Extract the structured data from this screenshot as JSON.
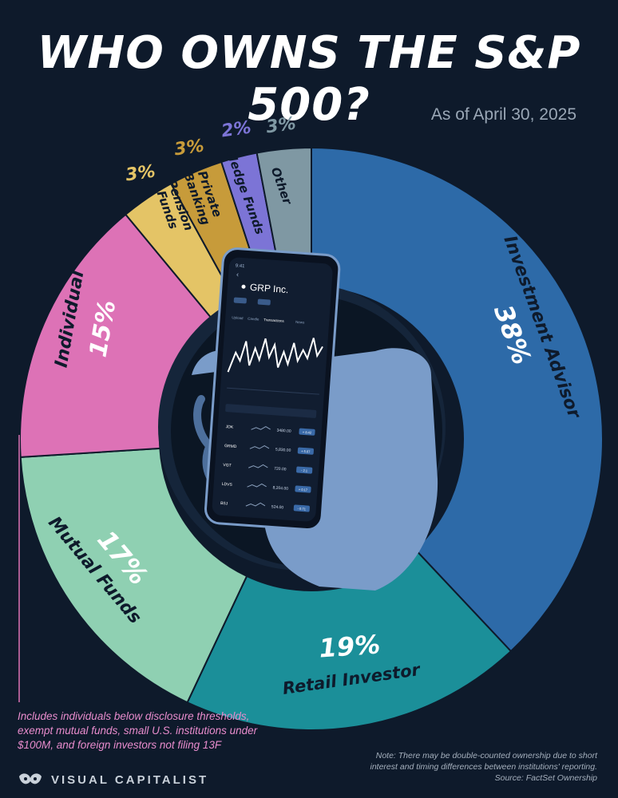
{
  "chart_data": {
    "type": "pie",
    "title": "WHO OWNS THE S&P 500?",
    "subtitle": "As of April 30, 2025",
    "categories": [
      "Investment Advisor",
      "Retail Investor",
      "Mutual Funds",
      "Individual",
      "Pension Funds",
      "Private Banking",
      "Hedge Funds",
      "Other"
    ],
    "values": [
      38,
      19,
      17,
      15,
      3,
      3,
      2,
      3
    ],
    "value_labels": [
      "38%",
      "19%",
      "17%",
      "15%",
      "3%",
      "3%",
      "2%",
      "3%"
    ],
    "colors": [
      "#2d6aa8",
      "#1b8f99",
      "#8fd0b2",
      "#dd72b6",
      "#e4c466",
      "#c79b3a",
      "#7c74d6",
      "#7f98a3"
    ],
    "start": "top, clockwise"
  },
  "phone": {
    "time": "9:41",
    "stock_name": "GRP Inc.",
    "tabs": [
      "Upload",
      "Candle",
      "Transactions",
      "News"
    ],
    "rows": [
      {
        "ticker": "JDK",
        "price": "3480.00",
        "change": "+ 8.42"
      },
      {
        "ticker": "GRMD",
        "price": "5,830.00",
        "change": "+ 5.07"
      },
      {
        "ticker": "VGT",
        "price": "720.00",
        "change": "- 2.1"
      },
      {
        "ticker": "LDVS",
        "price": "8,204.00",
        "change": "+ 0.17"
      },
      {
        "ticker": "BSJ",
        "price": "524.00",
        "change": "- 0.71"
      }
    ]
  },
  "footnote": "Includes individuals below disclosure thresholds, exempt mutual funds, small U.S. institutions under $100M, and foreign investors not filing 13F",
  "note": "Note: There may be double-counted ownership due to short interest and timing differences between institutions' reporting.",
  "source": "Source: FactSet Ownership",
  "brand": "VISUAL CAPITALIST"
}
